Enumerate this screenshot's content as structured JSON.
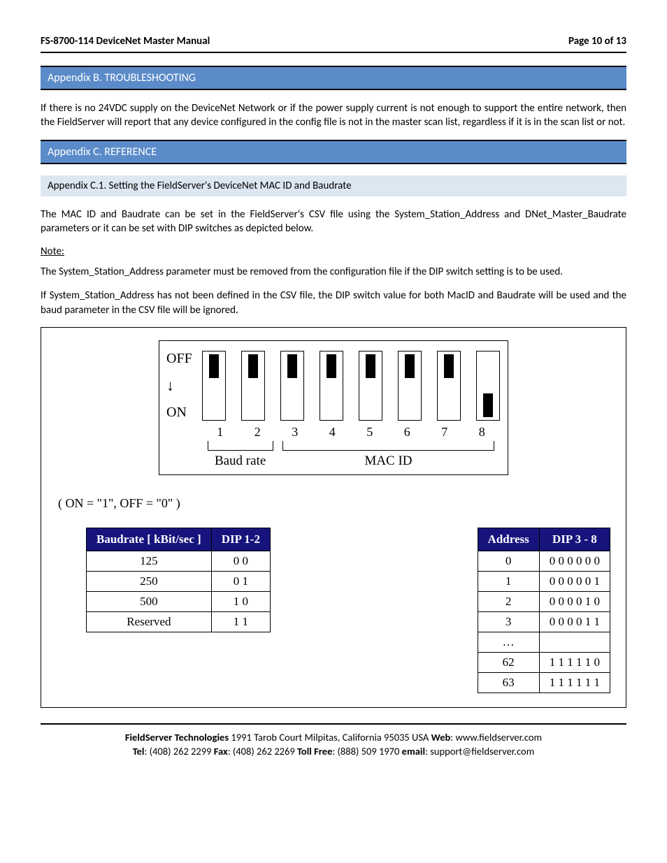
{
  "header": {
    "title": "FS-8700-114 DeviceNet Master Manual",
    "page": "Page 10 of 13"
  },
  "appendix_b": {
    "title": "Appendix B. TROUBLESHOOTING",
    "para": "If there is no 24VDC supply on the DeviceNet Network or if the power supply current is not enough to support the entire network, then the FieldServer will report that any device configured in the config file is not in the master scan list, regardless if it is in the scan list or not."
  },
  "appendix_c": {
    "title": "Appendix C. REFERENCE",
    "sub_title": "Appendix C.1. Setting the FieldServer's DeviceNet MAC ID and Baudrate",
    "para1": "The MAC ID and Baudrate can be set in the FieldServer's CSV file using the System_Station_Address and DNet_Master_Baudrate parameters or it can be set with DIP switches as depicted below.",
    "note_label": "Note:",
    "para2": "The System_Station_Address parameter must be removed from the configuration file if the DIP switch setting is to be used.",
    "para3": "If System_Station_Address has not been defined in the CSV file, the DIP switch value for both MacID and Baudrate will be used and the baud parameter in the CSV file will be ignored."
  },
  "dip": {
    "off_label": "OFF",
    "on_label": "ON",
    "positions": [
      "off",
      "off",
      "off",
      "off",
      "off",
      "off",
      "off",
      "on"
    ],
    "numbers": [
      "1",
      "2",
      "3",
      "4",
      "5",
      "6",
      "7",
      "8"
    ],
    "group1_label": "Baud rate",
    "group2_label": "MAC ID",
    "legend": "( ON = \"1\", OFF = \"0\" )"
  },
  "baud_table": {
    "headers": [
      "Baudrate [ kBit/sec ]",
      "DIP 1-2"
    ],
    "rows": [
      [
        "125",
        "0 0"
      ],
      [
        "250",
        "0 1"
      ],
      [
        "500",
        "1 0"
      ],
      [
        "Reserved",
        "1 1"
      ]
    ]
  },
  "addr_table": {
    "headers": [
      "Address",
      "DIP 3 - 8"
    ],
    "rows": [
      [
        "0",
        "0 0 0 0 0 0"
      ],
      [
        "1",
        "0 0 0 0 0 1"
      ],
      [
        "2",
        "0 0 0 0 1 0"
      ],
      [
        "3",
        "0 0 0 0 1 1"
      ],
      [
        "…",
        ""
      ],
      [
        "62",
        "1 1 1 1 1 0"
      ],
      [
        "63",
        "1 1 1 1 1 1"
      ]
    ]
  },
  "footer": {
    "line1_bold1": "FieldServer Technologies",
    "line1_rest": " 1991 Tarob Court Milpitas, California 95035 USA   ",
    "line1_bold2": "Web",
    "line1_web": ": www.fieldserver.com",
    "line2_tel_b": "Tel",
    "line2_tel": ": (408) 262 2299   ",
    "line2_fax_b": "Fax",
    "line2_fax": ": (408) 262 2269   ",
    "line2_tf_b": "Toll Free",
    "line2_tf": ": (888) 509 1970   ",
    "line2_em_b": "email",
    "line2_em": ": support@fieldserver.com"
  }
}
